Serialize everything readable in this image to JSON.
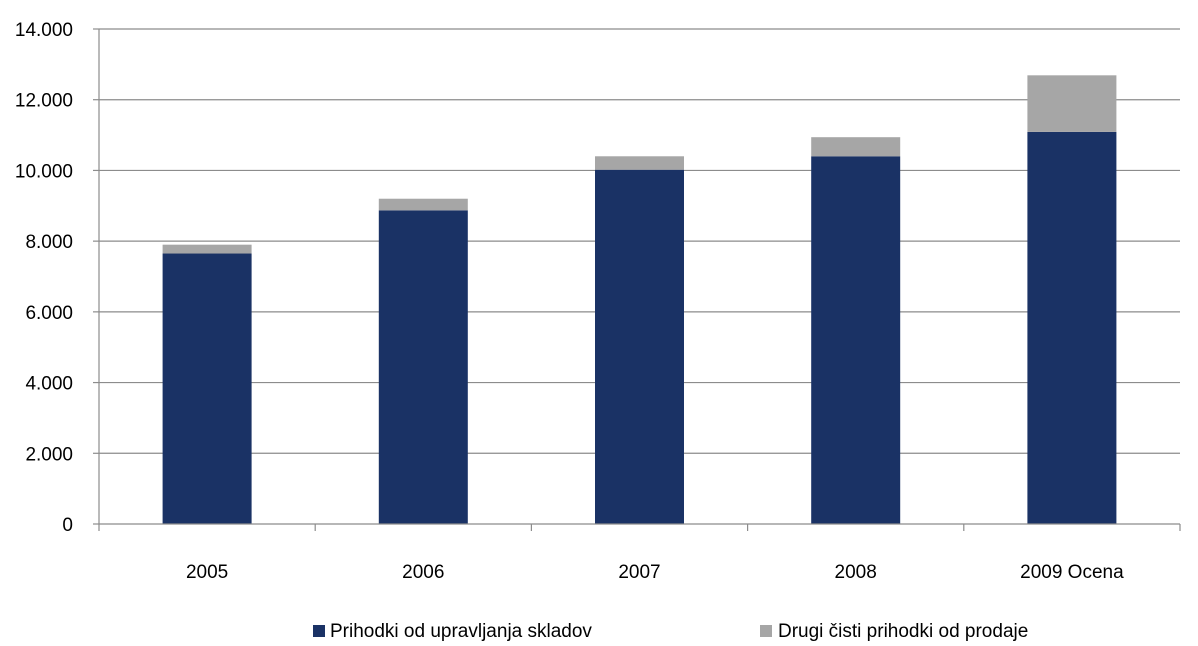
{
  "chart_data": {
    "type": "bar",
    "stacked": true,
    "categories": [
      "2005",
      "2006",
      "2007",
      "2008",
      "2009 Ocena"
    ],
    "series": [
      {
        "name": "Prihodki od upravljanja skladov",
        "values": [
          7650,
          8870,
          10020,
          10400,
          11090
        ]
      },
      {
        "name": "Drugi čisti prihodki od prodaje",
        "values": [
          250,
          330,
          380,
          540,
          1600
        ]
      }
    ],
    "colors": {
      "Prihodki od upravljanja skladov": "#1a3265",
      "Drugi čisti prihodki od prodaje": "#a6a6a6"
    },
    "ylim": [
      0,
      14000
    ],
    "yticks": [
      "0",
      "2.000",
      "4.000",
      "6.000",
      "8.000",
      "10.000",
      "12.000",
      "14.000"
    ],
    "grid": true,
    "legend_position": "bottom",
    "title": "",
    "xlabel": "",
    "ylabel": ""
  }
}
